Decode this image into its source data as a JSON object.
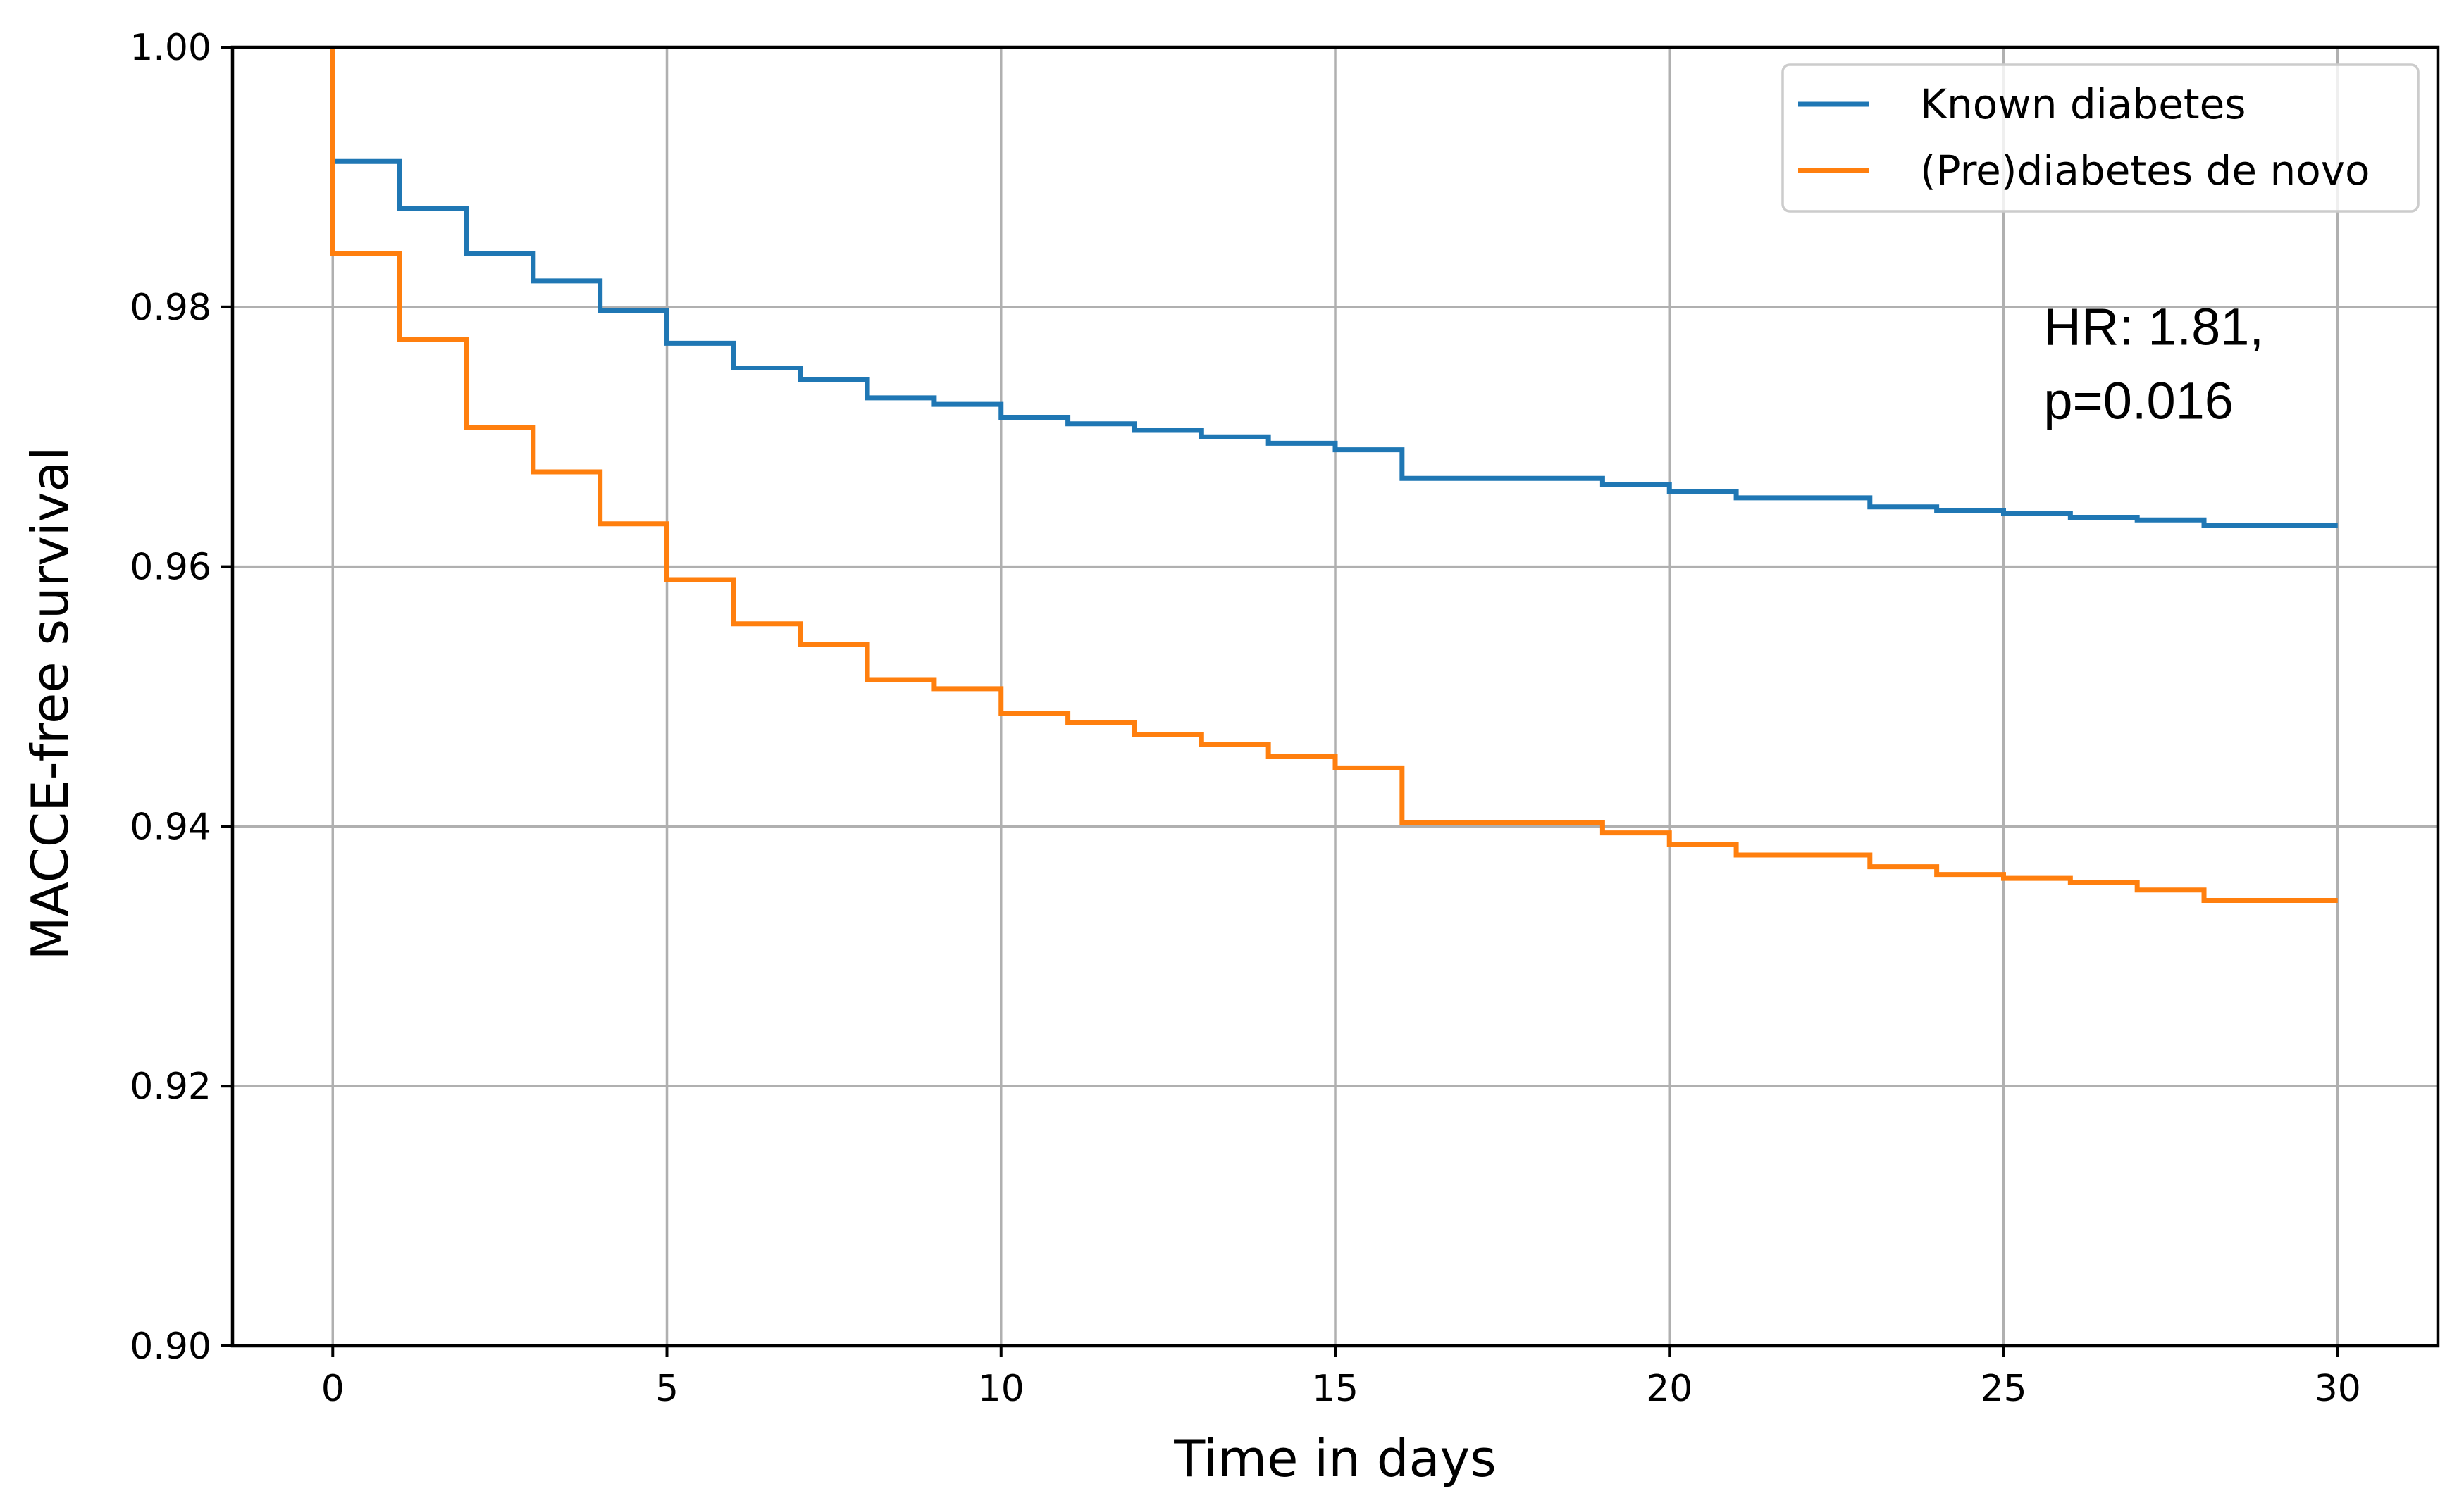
{
  "chart_data": {
    "type": "line",
    "subtype": "step-survival",
    "title": "",
    "xlabel": "Time in days",
    "ylabel": "MACCE-free survival",
    "xlim": [
      -1.5,
      31.5
    ],
    "ylim": [
      0.9,
      1.0
    ],
    "xticks": [
      0,
      5,
      10,
      15,
      20,
      25,
      30
    ],
    "xtick_labels": [
      "0",
      "5",
      "10",
      "15",
      "20",
      "25",
      "30"
    ],
    "yticks": [
      0.9,
      0.92,
      0.94,
      0.96,
      0.98,
      1.0
    ],
    "ytick_labels": [
      "0.90",
      "0.92",
      "0.94",
      "0.96",
      "0.98",
      "1.00"
    ],
    "grid": true,
    "legend_position": "top-right",
    "annotation": {
      "line1": "HR: 1.81,",
      "line2": "p=0.016",
      "x": 25.6,
      "y1": 0.9771,
      "y2": 0.9714
    },
    "series": [
      {
        "name": "Known diabetes",
        "color": "#1f77b4",
        "x": [
          0,
          1,
          2,
          3,
          4,
          5,
          6,
          7,
          8,
          9,
          10,
          11,
          12,
          13,
          14,
          15,
          16,
          17,
          18,
          19,
          20,
          21,
          22,
          23,
          24,
          25,
          26,
          27,
          28,
          29,
          30
        ],
        "y": [
          0.9912,
          0.9876,
          0.9841,
          0.982,
          0.9797,
          0.9772,
          0.9753,
          0.9744,
          0.973,
          0.9725,
          0.9715,
          0.971,
          0.9705,
          0.97,
          0.9695,
          0.969,
          0.9668,
          0.9668,
          0.9668,
          0.9663,
          0.9658,
          0.9653,
          0.9653,
          0.9646,
          0.9643,
          0.9641,
          0.9638,
          0.9636,
          0.9632,
          0.9632,
          0.9632
        ]
      },
      {
        "name": "(Pre)diabetes de novo",
        "color": "#ff7f0e",
        "x": [
          0,
          1,
          2,
          3,
          4,
          5,
          6,
          7,
          8,
          9,
          10,
          11,
          12,
          13,
          14,
          15,
          16,
          17,
          18,
          19,
          20,
          21,
          22,
          23,
          24,
          25,
          26,
          27,
          28,
          29,
          30
        ],
        "y": [
          0.9841,
          0.9775,
          0.9707,
          0.9673,
          0.9633,
          0.959,
          0.9556,
          0.954,
          0.9513,
          0.9506,
          0.9487,
          0.948,
          0.9471,
          0.9463,
          0.9454,
          0.9445,
          0.9403,
          0.9403,
          0.9403,
          0.9395,
          0.9386,
          0.9378,
          0.9378,
          0.9369,
          0.9363,
          0.936,
          0.9357,
          0.9351,
          0.9343,
          0.9343,
          0.9343
        ]
      }
    ]
  }
}
